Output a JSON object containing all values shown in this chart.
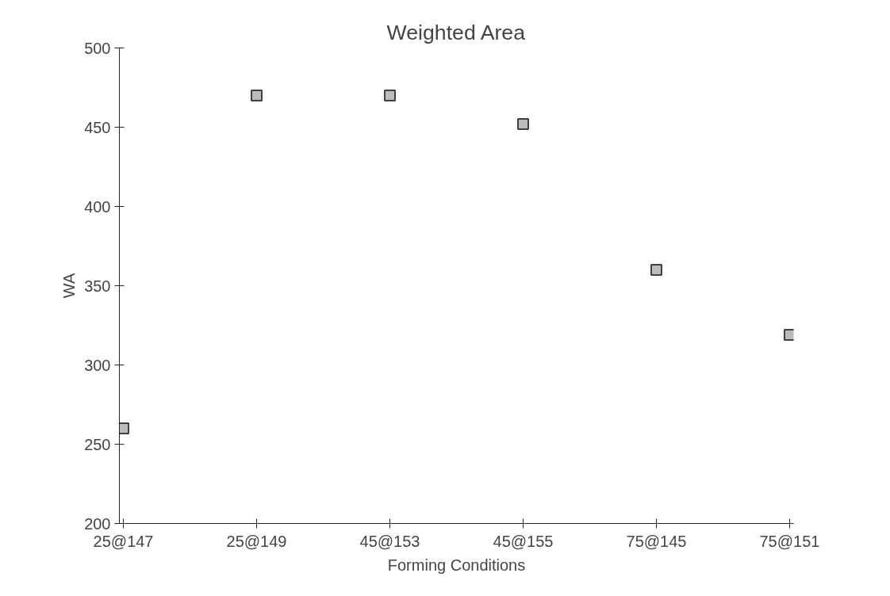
{
  "chart_data": {
    "type": "scatter",
    "title": "Weighted Area",
    "xlabel": "Forming Conditions",
    "ylabel": "WA",
    "categories": [
      "25@147",
      "25@149",
      "45@153",
      "45@155",
      "75@145",
      "75@151"
    ],
    "series": [
      {
        "color": "#404040",
        "values": [
          260,
          470,
          470,
          452,
          360,
          319
        ]
      }
    ],
    "ylim": [
      200,
      500
    ],
    "yticks": [
      200,
      250,
      300,
      350,
      400,
      450,
      500
    ],
    "marker": "square"
  }
}
